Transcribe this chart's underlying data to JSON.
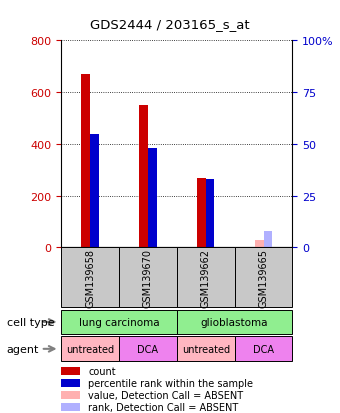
{
  "title": "GDS2444 / 203165_s_at",
  "samples": [
    "GSM139658",
    "GSM139670",
    "GSM139662",
    "GSM139665"
  ],
  "count_values": [
    670,
    550,
    270,
    0
  ],
  "percentile_values": [
    55,
    48,
    33,
    0
  ],
  "absent_count": [
    0,
    0,
    0,
    30
  ],
  "absent_percentile": [
    0,
    0,
    0,
    8
  ],
  "detection_absent": [
    false,
    false,
    false,
    true
  ],
  "cell_types": [
    {
      "label": "lung carcinoma",
      "span": [
        0,
        2
      ],
      "color": "#90EE90"
    },
    {
      "label": "glioblastoma",
      "span": [
        2,
        4
      ],
      "color": "#90EE90"
    }
  ],
  "agents": [
    {
      "label": "untreated",
      "span": [
        0,
        1
      ],
      "color": "#FFB6C1"
    },
    {
      "label": "DCA",
      "span": [
        1,
        2
      ],
      "color": "#EE82EE"
    },
    {
      "label": "untreated",
      "span": [
        2,
        3
      ],
      "color": "#FFB6C1"
    },
    {
      "label": "DCA",
      "span": [
        3,
        4
      ],
      "color": "#EE82EE"
    }
  ],
  "ylim_left": [
    0,
    800
  ],
  "ylim_right": [
    0,
    100
  ],
  "yticks_left": [
    0,
    200,
    400,
    600,
    800
  ],
  "yticks_right": [
    0,
    25,
    50,
    75,
    100
  ],
  "left_color": "#CC0000",
  "right_color": "#0000CC",
  "bar_width": 0.15,
  "background_color": "#ffffff",
  "sample_box_color": "#C8C8C8",
  "legend_items": [
    {
      "color": "#CC0000",
      "label": "count"
    },
    {
      "color": "#0000CC",
      "label": "percentile rank within the sample"
    },
    {
      "color": "#FFB0B0",
      "label": "value, Detection Call = ABSENT"
    },
    {
      "color": "#B0B0FF",
      "label": "rank, Detection Call = ABSENT"
    }
  ]
}
